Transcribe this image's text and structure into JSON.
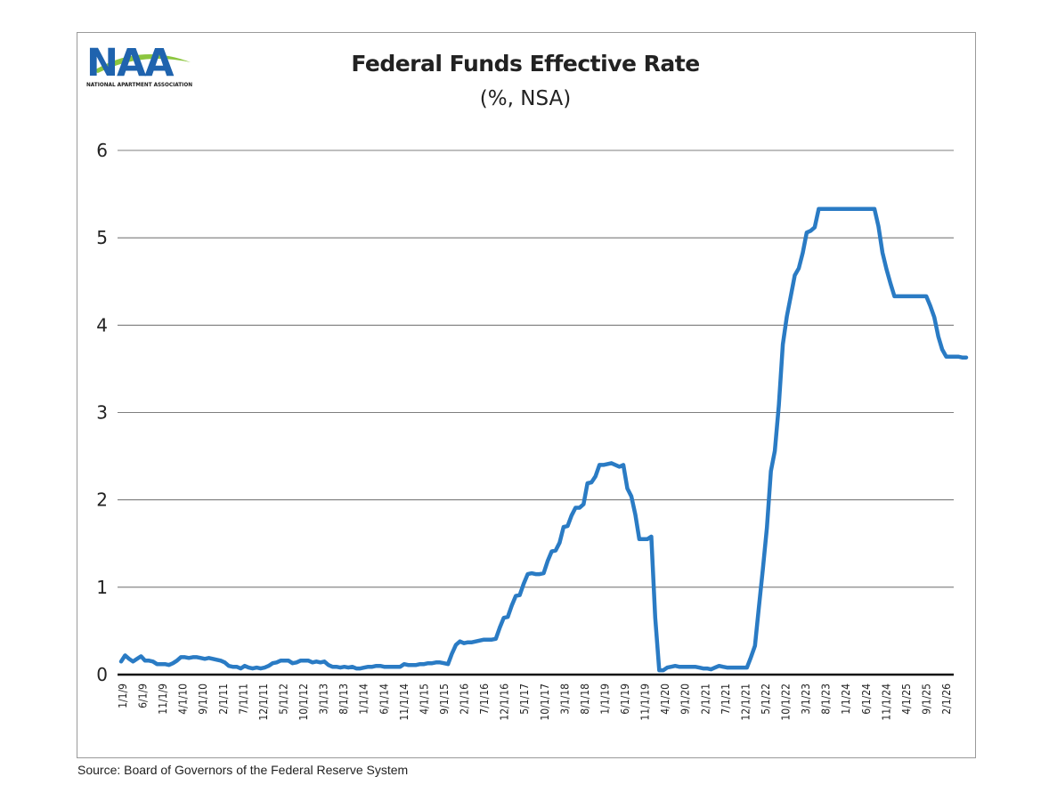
{
  "logo": {
    "letters": "NAA",
    "tagline": "NATIONAL APARTMENT ASSOCIATION",
    "colors": {
      "blue": "#1f63ae",
      "green": "#8cc63f"
    }
  },
  "title": "Federal Funds Effective Rate",
  "subtitle": "(%, NSA)",
  "source": "Source: Board of Governors of the Federal Reserve System",
  "chart_data": {
    "type": "line",
    "title": "Federal Funds Effective Rate",
    "subtitle": "(%, NSA)",
    "xlabel": "",
    "ylabel": "",
    "ylim": [
      0,
      6
    ],
    "yticks": [
      "0",
      "1",
      "2",
      "3",
      "4",
      "5",
      "6"
    ],
    "grid": "horizontal",
    "line_color": "#2a7bc4",
    "xrange": [
      "1/1/9",
      "3/1/26"
    ],
    "x_tick_labels": [
      "1/1/9",
      "6/1/9",
      "11/1/9",
      "4/1/10",
      "9/1/10",
      "2/1/11",
      "7/1/11",
      "12/1/11",
      "5/1/12",
      "10/1/12",
      "3/1/13",
      "8/1/13",
      "1/1/14",
      "6/1/14",
      "11/1/14",
      "4/1/15",
      "9/1/15",
      "2/1/16",
      "7/1/16",
      "12/1/16",
      "5/1/17",
      "10/1/17",
      "3/1/18",
      "8/1/18",
      "1/1/19",
      "6/1/19",
      "11/1/19",
      "4/1/20",
      "9/1/20",
      "2/1/21",
      "7/1/21",
      "12/1/21",
      "5/1/22",
      "10/1/22",
      "3/1/23",
      "8/1/23",
      "1/1/24",
      "6/1/24",
      "11/1/24",
      "4/1/25",
      "9/1/25",
      "2/1/26"
    ],
    "series": [
      {
        "values": [
          0.15,
          0.22,
          0.18,
          0.15,
          0.18,
          0.21,
          0.16,
          0.16,
          0.15,
          0.12,
          0.12,
          0.12,
          0.11,
          0.13,
          0.16,
          0.2,
          0.2,
          0.19,
          0.2,
          0.2,
          0.19,
          0.18,
          0.19,
          0.18,
          0.17,
          0.16,
          0.14,
          0.1,
          0.09,
          0.09,
          0.07,
          0.1,
          0.08,
          0.07,
          0.08,
          0.07,
          0.08,
          0.1,
          0.13,
          0.14,
          0.16,
          0.16,
          0.16,
          0.13,
          0.14,
          0.16,
          0.16,
          0.16,
          0.14,
          0.15,
          0.14,
          0.15,
          0.11,
          0.09,
          0.09,
          0.08,
          0.09,
          0.08,
          0.09,
          0.07,
          0.07,
          0.08,
          0.09,
          0.09,
          0.1,
          0.1,
          0.09,
          0.09,
          0.09,
          0.09,
          0.09,
          0.12,
          0.11,
          0.11,
          0.11,
          0.12,
          0.12,
          0.13,
          0.13,
          0.14,
          0.14,
          0.13,
          0.12,
          0.24,
          0.34,
          0.38,
          0.36,
          0.37,
          0.37,
          0.38,
          0.39,
          0.4,
          0.4,
          0.4,
          0.41,
          0.54,
          0.65,
          0.66,
          0.79,
          0.9,
          0.91,
          1.04,
          1.15,
          1.16,
          1.15,
          1.15,
          1.16,
          1.3,
          1.41,
          1.42,
          1.51,
          1.69,
          1.7,
          1.82,
          1.91,
          1.91,
          1.95,
          2.19,
          2.2,
          2.27,
          2.4,
          2.4,
          2.41,
          2.42,
          2.4,
          2.38,
          2.4,
          2.13,
          2.04,
          1.83,
          1.55,
          1.55,
          1.55,
          1.58,
          0.65,
          0.05,
          0.05,
          0.08,
          0.09,
          0.1,
          0.09,
          0.09,
          0.09,
          0.09,
          0.09,
          0.08,
          0.07,
          0.07,
          0.06,
          0.08,
          0.1,
          0.09,
          0.08,
          0.08,
          0.08,
          0.08,
          0.08,
          0.08,
          0.2,
          0.33,
          0.77,
          1.21,
          1.68,
          2.33,
          2.56,
          3.08,
          3.78,
          4.1,
          4.33,
          4.57,
          4.65,
          4.83,
          5.06,
          5.08,
          5.12,
          5.33,
          5.33,
          5.33,
          5.33,
          5.33,
          5.33,
          5.33,
          5.33,
          5.33,
          5.33,
          5.33,
          5.33,
          5.33,
          5.33,
          5.33,
          5.13,
          4.83,
          4.64,
          4.48,
          4.33,
          4.33,
          4.33,
          4.33,
          4.33,
          4.33,
          4.33,
          4.33,
          4.33,
          4.22,
          4.09,
          3.87,
          3.72,
          3.64,
          3.64,
          3.64,
          3.64,
          3.63,
          3.63
        ]
      }
    ]
  }
}
